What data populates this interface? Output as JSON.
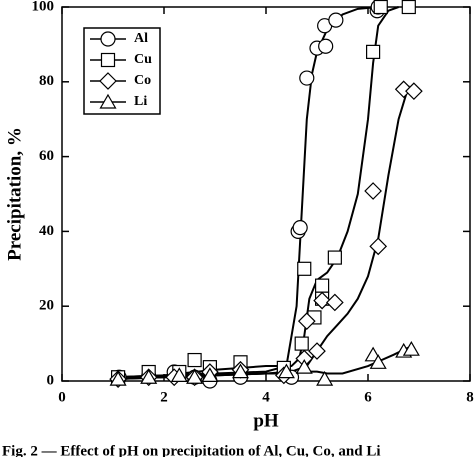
{
  "chart_data": {
    "type": "scatter",
    "caption": "Fig. 2 — Effect of pH on precipitation of Al, Cu, Co, and Li",
    "x_label": "pH",
    "y_label": "Precipitation, %",
    "xlim": [
      0,
      8
    ],
    "xticks": [
      0,
      2,
      4,
      6,
      8
    ],
    "ylim": [
      0,
      100
    ],
    "yticks": [
      0,
      20,
      40,
      60,
      80,
      100
    ],
    "legend": "upper left",
    "series": [
      {
        "name": "Al",
        "marker": "circle",
        "color": "#000000",
        "x": [
          1.12,
          1.7,
          2.2,
          2.6,
          2.9,
          3.5,
          4.35,
          4.5,
          4.63,
          4.67,
          4.8,
          5.0,
          5.15,
          5.17,
          5.37,
          6.18,
          6.2
        ],
        "values": [
          1,
          1.3,
          2.4,
          1,
          0,
          1,
          2,
          1,
          40,
          41,
          81,
          89,
          95,
          89.5,
          96.5,
          99,
          100
        ]
      },
      {
        "name": "Cu",
        "marker": "square",
        "color": "#000000",
        "x": [
          1.1,
          1.7,
          2.3,
          2.6,
          2.9,
          3.5,
          4.35,
          4.7,
          4.75,
          4.95,
          5.1,
          5.1,
          5.35,
          6.1,
          6.25,
          6.8
        ],
        "values": [
          1,
          2.4,
          2.4,
          5.6,
          3.7,
          5,
          3.5,
          10,
          30,
          17,
          25.5,
          22,
          33,
          88,
          100,
          100
        ]
      },
      {
        "name": "Co",
        "marker": "diamond",
        "color": "#000000",
        "x": [
          1.1,
          1.7,
          2.2,
          2.6,
          2.9,
          3.5,
          4.35,
          4.75,
          4.8,
          5.0,
          5.1,
          5.35,
          6.1,
          6.2,
          6.7,
          6.9
        ],
        "values": [
          0.5,
          1,
          1,
          1,
          2.4,
          3,
          1.5,
          6,
          16,
          8,
          21.5,
          21,
          50.8,
          36,
          78,
          77.5
        ]
      },
      {
        "name": "Li",
        "marker": "triangle",
        "color": "#000000",
        "x": [
          1.1,
          1.7,
          2.3,
          2.6,
          2.9,
          3.5,
          4.4,
          4.75,
          5.15,
          6.1,
          6.2,
          6.7,
          6.85
        ],
        "values": [
          0.5,
          1,
          1.5,
          1,
          1.5,
          2.5,
          2.5,
          3.7,
          0.5,
          7,
          5,
          8,
          8.5
        ]
      }
    ],
    "fits": [
      {
        "x": [
          1,
          2,
          3,
          4,
          4.4,
          4.6,
          4.7,
          4.8,
          4.9,
          5.0,
          5.2,
          5.5,
          5.8,
          6.2
        ],
        "values": [
          1,
          1.5,
          2,
          2.5,
          4,
          20,
          45,
          70,
          82,
          88,
          94,
          98,
          99.5,
          100
        ]
      },
      {
        "x": [
          1,
          2,
          3,
          4,
          4.5,
          4.65,
          4.75,
          4.85,
          5.0,
          5.2,
          5.4,
          5.6,
          5.8,
          6.0,
          6.1,
          6.2,
          6.4,
          6.6
        ],
        "values": [
          1,
          1.5,
          3,
          4,
          4,
          6,
          12,
          22,
          27,
          29,
          33,
          40,
          50,
          70,
          85,
          95,
          99,
          100
        ]
      },
      {
        "x": [
          1,
          2,
          3,
          4,
          4.5,
          4.8,
          5.0,
          5.2,
          5.4,
          5.6,
          5.8,
          6.0,
          6.2,
          6.4,
          6.6,
          6.8
        ],
        "values": [
          0.5,
          1,
          1.5,
          2,
          2.5,
          4,
          8,
          12,
          15,
          18,
          22,
          28,
          38,
          55,
          70,
          79
        ]
      },
      {
        "x": [
          1,
          2,
          3,
          4,
          4.5,
          4.8,
          5.0,
          5.2,
          5.5,
          6.0,
          6.5,
          6.8
        ],
        "values": [
          0.5,
          1,
          1.5,
          2,
          2,
          2.5,
          2.5,
          2,
          2,
          4,
          7,
          9
        ]
      }
    ]
  }
}
